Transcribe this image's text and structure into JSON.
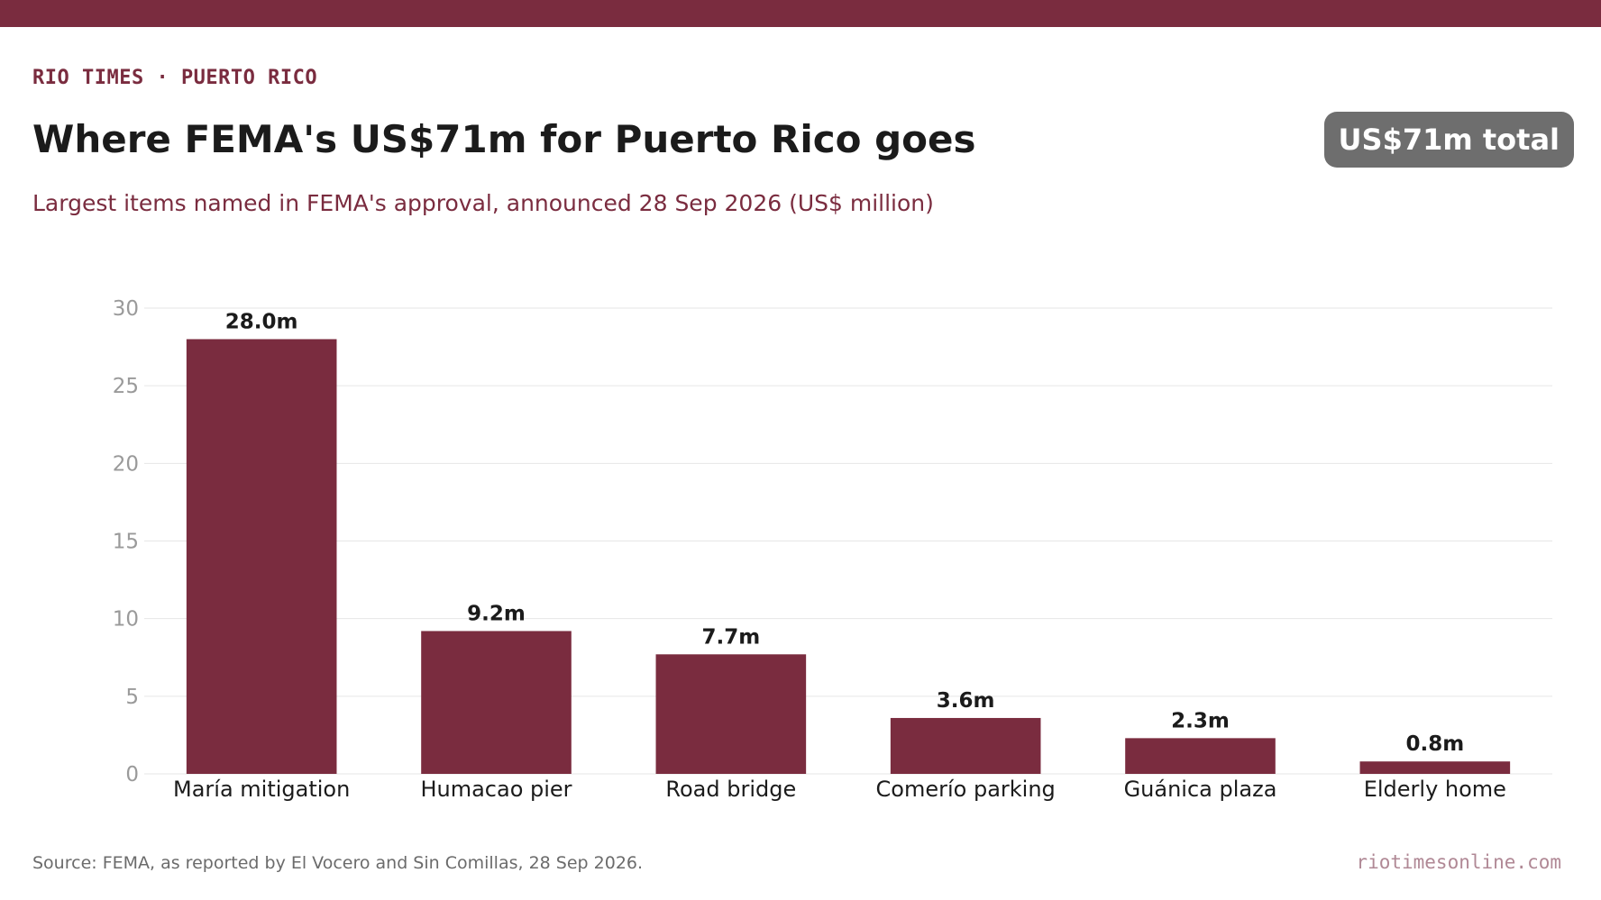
{
  "header": {
    "kicker": "RIO TIMES · PUERTO RICO",
    "title": "Where FEMA's US$71m for Puerto Rico goes",
    "subtitle": "Largest items named in FEMA's approval, announced 28 Sep 2026 (US$ million)",
    "total_badge": "US$71m total"
  },
  "footer": {
    "source": "Source: FEMA, as reported by El Vocero and Sin Comillas, 28 Sep 2026.",
    "site": "riotimesonline.com"
  },
  "colors": {
    "accent": "#7a2c3f",
    "badge": "#6e6e6e",
    "grid": "#e6e6e6",
    "tick": "#9a9a9a",
    "label": "#1b1b1b"
  },
  "chart_data": {
    "type": "bar",
    "title": "Where FEMA's US$71m for Puerto Rico goes",
    "xlabel": "",
    "ylabel": "",
    "categories": [
      "María mitigation",
      "Humacao pier",
      "Road bridge",
      "Comerío parking",
      "Guánica plaza",
      "Elderly home"
    ],
    "values": [
      28.0,
      9.2,
      7.7,
      3.6,
      2.3,
      0.8
    ],
    "data_labels": [
      "28.0m",
      "9.2m",
      "7.7m",
      "3.6m",
      "2.3m",
      "0.8m"
    ],
    "ylim": [
      0,
      30
    ],
    "yticks": [
      0,
      5,
      10,
      15,
      20,
      25,
      30
    ],
    "grid": true,
    "legend": "none"
  }
}
